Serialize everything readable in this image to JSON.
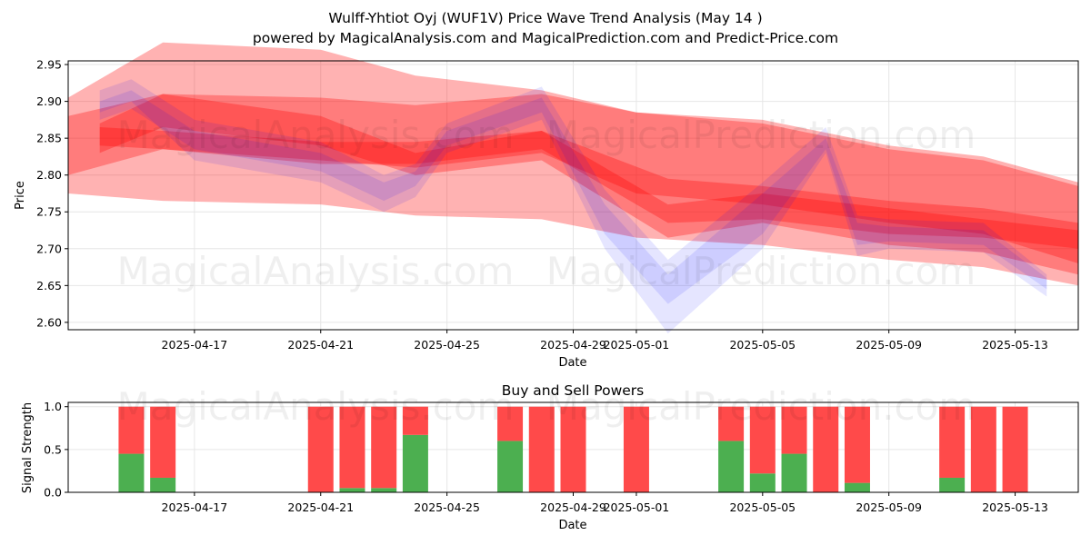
{
  "header": {
    "title": "Wulff-Yhtiot Oyj (WUF1V) Price Wave Trend Analysis (May 14 )",
    "subtitle": "powered by MagicalAnalysis.com and MagicalPrediction.com and Predict-Price.com"
  },
  "watermarks": [
    "MagicalAnalysis.com",
    "MagicalPrediction.com"
  ],
  "colors": {
    "red_band": "#ff0000",
    "blue_band": "#0000ff",
    "buy": "#4caf50",
    "sell": "#ff4a4a",
    "grid": "#e6e6e6"
  },
  "chart_data": [
    {
      "type": "area",
      "title": "",
      "xlabel": "Date",
      "ylabel": "Price",
      "xlim": [
        "2025-04-13",
        "2025-05-15"
      ],
      "ylim": [
        2.59,
        2.955
      ],
      "x_ticks": [
        "2025-04-17",
        "2025-04-21",
        "2025-04-25",
        "2025-04-29",
        "2025-05-01",
        "2025-05-05",
        "2025-05-09",
        "2025-05-13"
      ],
      "y_ticks": [
        "2.60",
        "2.65",
        "2.70",
        "2.75",
        "2.80",
        "2.85",
        "2.90",
        "2.95"
      ],
      "grid": true,
      "red_bands": [
        {
          "name": "",
          "x": [
            "2025-04-13",
            "2025-04-16",
            "2025-04-21",
            "2025-04-24",
            "2025-04-28",
            "2025-05-01",
            "2025-05-05",
            "2025-05-09",
            "2025-05-12",
            "2025-05-15"
          ],
          "upper": [
            2.905,
            2.98,
            2.97,
            2.935,
            2.915,
            2.885,
            2.875,
            2.84,
            2.825,
            2.79
          ],
          "lower": [
            2.775,
            2.765,
            2.76,
            2.745,
            2.74,
            2.715,
            2.705,
            2.685,
            2.675,
            2.65
          ]
        },
        {
          "name": "",
          "x": [
            "2025-04-13",
            "2025-04-16",
            "2025-04-21",
            "2025-04-24",
            "2025-04-28",
            "2025-05-01",
            "2025-05-05",
            "2025-05-09",
            "2025-05-12",
            "2025-05-15"
          ],
          "upper": [
            2.88,
            2.91,
            2.905,
            2.895,
            2.91,
            2.885,
            2.87,
            2.835,
            2.82,
            2.785
          ],
          "lower": [
            2.8,
            2.835,
            2.82,
            2.81,
            2.83,
            2.775,
            2.76,
            2.735,
            2.72,
            2.68
          ]
        },
        {
          "name": "",
          "x": [
            "2025-04-14",
            "2025-04-16",
            "2025-04-21",
            "2025-04-24",
            "2025-04-28",
            "2025-05-02",
            "2025-05-05",
            "2025-05-09",
            "2025-05-12",
            "2025-05-15"
          ],
          "upper": [
            2.87,
            2.91,
            2.88,
            2.83,
            2.86,
            2.76,
            2.775,
            2.755,
            2.74,
            2.725
          ],
          "lower": [
            2.83,
            2.865,
            2.84,
            2.8,
            2.82,
            2.715,
            2.735,
            2.705,
            2.695,
            2.665
          ]
        },
        {
          "name": "",
          "x": [
            "2025-04-14",
            "2025-04-16",
            "2025-04-21",
            "2025-04-24",
            "2025-04-28",
            "2025-05-02",
            "2025-05-05",
            "2025-05-09",
            "2025-05-12",
            "2025-05-15"
          ],
          "upper": [
            2.865,
            2.86,
            2.845,
            2.845,
            2.86,
            2.795,
            2.785,
            2.765,
            2.755,
            2.735
          ],
          "lower": [
            2.84,
            2.835,
            2.815,
            2.815,
            2.835,
            2.735,
            2.74,
            2.72,
            2.715,
            2.7
          ]
        }
      ],
      "blue_bands": [
        {
          "name": "",
          "x": [
            "2025-04-14",
            "2025-04-15",
            "2025-04-17",
            "2025-04-21",
            "2025-04-23",
            "2025-04-24",
            "2025-04-25",
            "2025-04-28",
            "2025-04-30",
            "2025-05-02",
            "2025-05-05",
            "2025-05-07",
            "2025-05-08",
            "2025-05-09",
            "2025-05-12",
            "2025-05-14"
          ],
          "upper": [
            2.915,
            2.93,
            2.875,
            2.845,
            2.8,
            2.815,
            2.87,
            2.92,
            2.78,
            2.685,
            2.79,
            2.865,
            2.745,
            2.74,
            2.735,
            2.665
          ],
          "lower": [
            2.885,
            2.9,
            2.82,
            2.79,
            2.75,
            2.77,
            2.83,
            2.875,
            2.7,
            2.585,
            2.7,
            2.83,
            2.69,
            2.7,
            2.695,
            2.635
          ]
        },
        {
          "name": "",
          "x": [
            "2025-04-14",
            "2025-04-15",
            "2025-04-17",
            "2025-04-21",
            "2025-04-23",
            "2025-04-24",
            "2025-04-25",
            "2025-04-28",
            "2025-04-30",
            "2025-05-02",
            "2025-05-05",
            "2025-05-07",
            "2025-05-08",
            "2025-05-09",
            "2025-05-12",
            "2025-05-14"
          ],
          "upper": [
            2.9,
            2.915,
            2.86,
            2.83,
            2.79,
            2.805,
            2.86,
            2.905,
            2.76,
            2.665,
            2.775,
            2.85,
            2.735,
            2.73,
            2.725,
            2.66
          ],
          "lower": [
            2.875,
            2.89,
            2.835,
            2.805,
            2.765,
            2.785,
            2.84,
            2.885,
            2.72,
            2.625,
            2.72,
            2.835,
            2.705,
            2.71,
            2.705,
            2.645
          ]
        }
      ]
    },
    {
      "type": "bar",
      "title": "Buy and Sell Powers",
      "xlabel": "Date",
      "ylabel": "Signal Strength",
      "xlim": [
        "2025-04-13",
        "2025-05-15"
      ],
      "ylim": [
        0,
        1.05
      ],
      "x_ticks": [
        "2025-04-17",
        "2025-04-21",
        "2025-04-25",
        "2025-04-29",
        "2025-05-01",
        "2025-05-05",
        "2025-05-09",
        "2025-05-13"
      ],
      "y_ticks": [
        "0.0",
        "0.5",
        "1.0"
      ],
      "grid": true,
      "x": [
        "2025-04-15",
        "2025-04-16",
        "2025-04-21",
        "2025-04-22",
        "2025-04-23",
        "2025-04-24",
        "2025-04-27",
        "2025-04-28",
        "2025-04-29",
        "2025-05-01",
        "2025-05-04",
        "2025-05-05",
        "2025-05-06",
        "2025-05-07",
        "2025-05-08",
        "2025-05-11",
        "2025-05-12",
        "2025-05-13"
      ],
      "series": [
        {
          "name": "",
          "values": [
            0.45,
            0.17,
            0.0,
            0.05,
            0.05,
            0.67,
            0.6,
            0.0,
            0.0,
            0.0,
            0.6,
            0.22,
            0.45,
            0.0,
            0.11,
            0.17,
            0.0,
            0.0
          ]
        },
        {
          "name": "",
          "values": [
            0.55,
            0.83,
            1.0,
            0.95,
            0.95,
            0.33,
            0.4,
            1.0,
            1.0,
            1.0,
            0.4,
            0.78,
            0.55,
            1.0,
            0.89,
            0.83,
            1.0,
            1.0
          ]
        }
      ]
    }
  ]
}
